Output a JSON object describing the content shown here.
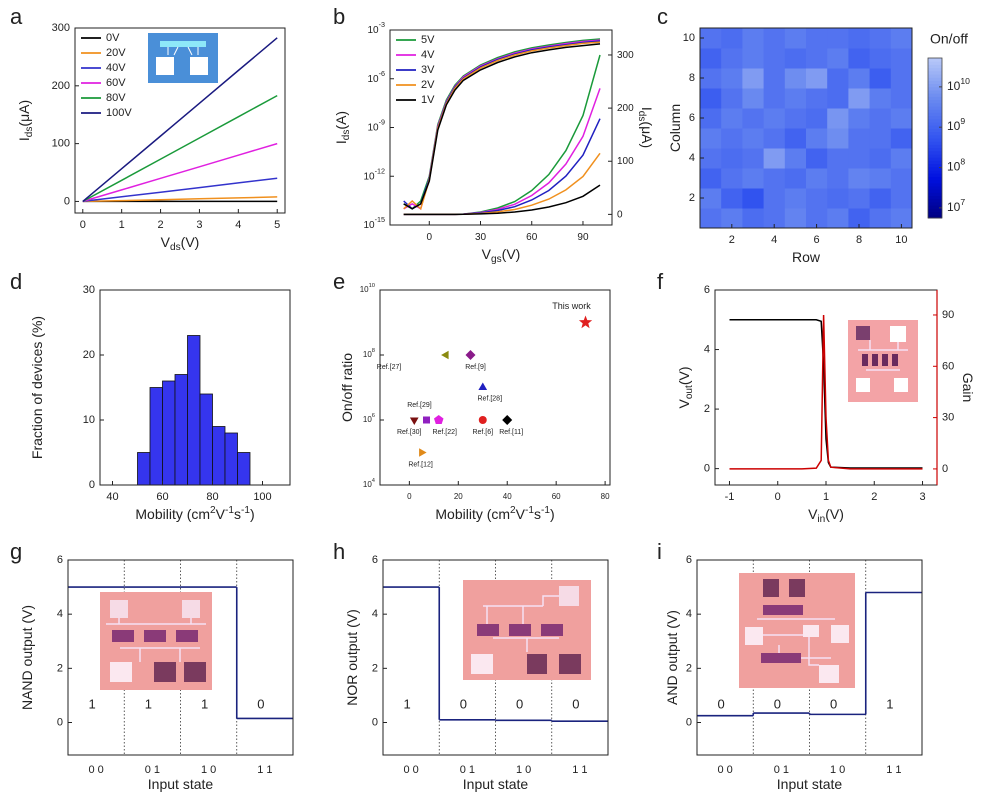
{
  "chart_data": [
    {
      "type": "line",
      "panel": "a",
      "xlabel": [
        {
          "text": "V"
        },
        {
          "text": "ds",
          "sub": true
        },
        {
          "text": "(V)"
        }
      ],
      "ylabel": [
        {
          "text": "I"
        },
        {
          "text": "ds",
          "sub": true
        },
        {
          "text": "(μA)"
        }
      ],
      "xlim": [
        -0.2,
        5.2
      ],
      "xticks": [
        0,
        1,
        2,
        3,
        4,
        5
      ],
      "ylim": [
        -20,
        300
      ],
      "yticks": [
        0,
        100,
        200,
        300
      ],
      "legend": "upper-left",
      "x": [
        0,
        1,
        2,
        3,
        4,
        5
      ],
      "series": [
        {
          "name": "0V",
          "color": "#000000",
          "values": [
            0,
            0,
            0,
            0,
            0,
            0
          ]
        },
        {
          "name": "20V",
          "color": "#f0901e",
          "values": [
            0,
            1.5,
            3,
            4.6,
            6.2,
            7.8
          ]
        },
        {
          "name": "40V",
          "color": "#3333cc",
          "values": [
            0,
            8,
            16,
            24,
            32,
            40
          ]
        },
        {
          "name": "60V",
          "color": "#e020e0",
          "values": [
            0,
            20,
            40,
            60,
            80,
            100
          ]
        },
        {
          "name": "80V",
          "color": "#1a9a3a",
          "values": [
            0,
            36.6,
            73.2,
            109.8,
            146.4,
            183
          ]
        },
        {
          "name": "100V",
          "color": "#1a1a80",
          "values": [
            0,
            56.6,
            113.2,
            169.8,
            226.4,
            283
          ]
        }
      ]
    },
    {
      "type": "dual-axis-line",
      "panel": "b",
      "xlabel": [
        {
          "text": "V"
        },
        {
          "text": "gs",
          "sub": true
        },
        {
          "text": "(V)"
        }
      ],
      "ylabel": [
        {
          "text": "I"
        },
        {
          "text": "ds",
          "sub": true
        },
        {
          "text": "(A)"
        }
      ],
      "y2label": [
        {
          "text": "I"
        },
        {
          "text": "ds",
          "sub": true
        },
        {
          "text": "(μA)"
        }
      ],
      "xlim": [
        -23,
        107
      ],
      "xticks": [
        0,
        30,
        60,
        90
      ],
      "ylog": true,
      "ylim": [
        1e-15,
        0.001
      ],
      "yticks": [
        {
          "value": 1e-15,
          "label": "10",
          "sup": "-15"
        },
        {
          "value": 1e-12,
          "label": "10",
          "sup": "-12"
        },
        {
          "value": 1e-09,
          "label": "10",
          "sup": "-9"
        },
        {
          "value": 1e-06,
          "label": "10",
          "sup": "-6"
        },
        {
          "value": 0.001,
          "label": "10",
          "sup": "-3"
        }
      ],
      "y2lim": [
        -20,
        347
      ],
      "y2ticks": [
        0,
        100,
        200,
        300
      ],
      "legend": "upper-left",
      "x": [
        -15,
        -10,
        -5,
        0,
        5,
        10,
        15,
        20,
        30,
        40,
        50,
        60,
        70,
        80,
        90,
        100
      ],
      "series": [
        {
          "name": "5V",
          "color": "#1a9a3a",
          "values": [
            2e-14,
            1e-14,
            3e-14,
            1e-12,
            1.5e-09,
            5e-08,
            4e-07,
            1.5e-06,
            7e-06,
            2e-05,
            4.5e-05,
            8e-05,
            0.00012,
            0.00017,
            0.00023,
            0.00028
          ]
        },
        {
          "name": "4V",
          "color": "#e020e0",
          "values": [
            1e-14,
            2e-14,
            1e-14,
            8e-13,
            1.2e-09,
            4e-08,
            3.4e-07,
            1.3e-06,
            6e-06,
            1.7e-05,
            3.8e-05,
            6.8e-05,
            0.0001,
            0.000145,
            0.000195,
            0.00024
          ]
        },
        {
          "name": "3V",
          "color": "#2020c0",
          "values": [
            3e-14,
            1e-14,
            2e-14,
            7e-13,
            1e-09,
            3.5e-08,
            3e-07,
            1.1e-06,
            5.2e-06,
            1.5e-05,
            3.3e-05,
            6e-05,
            9e-05,
            0.000125,
            0.00017,
            0.00021
          ]
        },
        {
          "name": "2V",
          "color": "#f0901e",
          "values": [
            1e-14,
            3e-14,
            1e-14,
            6e-13,
            9e-10,
            3e-08,
            2.6e-07,
            1e-06,
            4.5e-06,
            1.3e-05,
            2.9e-05,
            5.2e-05,
            7.8e-05,
            0.00011,
            0.00015,
            0.00018
          ]
        },
        {
          "name": "1V",
          "color": "#000000",
          "values": [
            2e-14,
            1e-14,
            2e-14,
            5e-13,
            7e-10,
            2.5e-08,
            2e-07,
            8e-07,
            3.5e-06,
            1e-05,
            2.2e-05,
            4e-05,
            6e-05,
            8.5e-05,
            0.00011,
            0.00014
          ]
        },
        {
          "axis": "y2",
          "color": "#1a9a3a",
          "values": [
            0,
            0,
            0,
            0,
            0,
            0,
            0,
            0.6,
            4.5,
            12,
            24,
            45,
            75,
            120,
            186,
            300
          ]
        },
        {
          "axis": "y2",
          "color": "#e020e0",
          "values": [
            0,
            0,
            0,
            0,
            0,
            0,
            0,
            0.5,
            3.6,
            9.5,
            19,
            35.6,
            59.3,
            94.8,
            147,
            237
          ]
        },
        {
          "axis": "y2",
          "color": "#2020c0",
          "values": [
            0,
            0,
            0,
            0,
            0,
            0,
            0,
            0.4,
            2.7,
            7.2,
            14.4,
            27,
            45,
            72,
            111.6,
            180
          ]
        },
        {
          "axis": "y2",
          "color": "#f0901e",
          "values": [
            0,
            0,
            0,
            0,
            0,
            0,
            0,
            0.2,
            1.7,
            4.6,
            9.2,
            17.3,
            28.8,
            46,
            71.3,
            115
          ]
        },
        {
          "axis": "y2",
          "color": "#000000",
          "values": [
            0,
            0,
            0,
            0,
            0,
            0,
            0,
            0.1,
            0.8,
            2.2,
            4.4,
            8.3,
            13.8,
            22,
            34.1,
            55
          ]
        }
      ]
    },
    {
      "type": "heatmap",
      "panel": "c",
      "xlabel": [
        {
          "text": "Row"
        }
      ],
      "ylabel": [
        {
          "text": "Column"
        }
      ],
      "zlabel": "On/off",
      "xlim": [
        0.5,
        10.5
      ],
      "xticks": [
        2,
        4,
        6,
        8,
        10
      ],
      "ylim": [
        0.5,
        10.5
      ],
      "yticks": [
        2,
        4,
        6,
        8,
        10
      ],
      "x": [
        1,
        2,
        3,
        4,
        5,
        6,
        7,
        8,
        9,
        10
      ],
      "y": [
        1,
        2,
        3,
        4,
        5,
        6,
        7,
        8,
        9,
        10
      ],
      "zlog": true,
      "zlim": [
        5600000.0,
        52000000000.0
      ],
      "zticks": [
        {
          "value": 10000000.0,
          "label": "10",
          "sup": "7"
        },
        {
          "value": 100000000.0,
          "label": "10",
          "sup": "8"
        },
        {
          "value": 1000000000.0,
          "label": "10",
          "sup": "9"
        },
        {
          "value": 10000000000.0,
          "label": "10",
          "sup": "10"
        }
      ],
      "colormap": [
        "#000080",
        "#0010e0",
        "#3355f0",
        "#6a8af0",
        "#b8c8f8"
      ],
      "values": [
        [
          2000000000.0,
          3000000000.0,
          1500000000.0,
          2000000000.0,
          4000000000.0,
          2000000000.0,
          3000000000.0,
          1000000000.0,
          2000000000.0,
          3000000000.0
        ],
        [
          3000000000.0,
          1000000000.0,
          500000000.0,
          2000000000.0,
          3000000000.0,
          2000000000.0,
          1500000000.0,
          2000000000.0,
          1000000000.0,
          2000000000.0
        ],
        [
          1000000000.0,
          2000000000.0,
          3000000000.0,
          2000000000.0,
          1500000000.0,
          3000000000.0,
          2000000000.0,
          4000000000.0,
          3000000000.0,
          2000000000.0
        ],
        [
          2000000000.0,
          1500000000.0,
          2000000000.0,
          10000000000.0,
          3000000000.0,
          1000000000.0,
          2000000000.0,
          2000000000.0,
          1500000000.0,
          3000000000.0
        ],
        [
          3000000000.0,
          2000000000.0,
          3000000000.0,
          2000000000.0,
          1000000000.0,
          3000000000.0,
          6000000000.0,
          2000000000.0,
          2000000000.0,
          1000000000.0
        ],
        [
          1500000000.0,
          3000000000.0,
          2000000000.0,
          3000000000.0,
          2000000000.0,
          1500000000.0,
          8000000000.0,
          3000000000.0,
          2000000000.0,
          3000000000.0
        ],
        [
          800000000.0,
          2000000000.0,
          5000000000.0,
          2000000000.0,
          3000000000.0,
          2000000000.0,
          1500000000.0,
          10000000000.0,
          3000000000.0,
          2000000000.0
        ],
        [
          2000000000.0,
          3000000000.0,
          10000000000.0,
          2000000000.0,
          6000000000.0,
          10000000000.0,
          1500000000.0,
          3000000000.0,
          800000000.0,
          2000000000.0
        ],
        [
          1000000000.0,
          2000000000.0,
          3000000000.0,
          2000000000.0,
          1500000000.0,
          2000000000.0,
          3000000000.0,
          1000000000.0,
          1500000000.0,
          2000000000.0
        ],
        [
          2000000000.0,
          1500000000.0,
          3000000000.0,
          2000000000.0,
          3000000000.0,
          2000000000.0,
          2000000000.0,
          1500000000.0,
          2000000000.0,
          3000000000.0
        ]
      ]
    },
    {
      "type": "histogram",
      "panel": "d",
      "xlabel": [
        {
          "text": "Mobility (cm"
        },
        {
          "text": "2",
          "sup": true
        },
        {
          "text": "V"
        },
        {
          "text": "-1",
          "sup": true
        },
        {
          "text": "s"
        },
        {
          "text": "-1",
          "sup": true
        },
        {
          "text": ")"
        }
      ],
      "ylabel": [
        {
          "text": "Fraction of devices (%)"
        }
      ],
      "xlim": [
        35,
        111
      ],
      "xticks": [
        40,
        60,
        80,
        100
      ],
      "ylim": [
        0,
        30
      ],
      "yticks": [
        0,
        10,
        20,
        30
      ],
      "color": "#3535ee",
      "bins": [
        50,
        55,
        60,
        65,
        70,
        75,
        80,
        85,
        90,
        95
      ],
      "counts": [
        5,
        15,
        16,
        17,
        23,
        14,
        9,
        8,
        5
      ]
    },
    {
      "type": "scatter",
      "panel": "e",
      "xlabel": [
        {
          "text": "Mobility (cm"
        },
        {
          "text": "2",
          "sup": true
        },
        {
          "text": "V"
        },
        {
          "text": "-1",
          "sup": true
        },
        {
          "text": "s"
        },
        {
          "text": "-1",
          "sup": true
        },
        {
          "text": ")"
        }
      ],
      "ylabel": [
        {
          "text": "On/off ratio"
        }
      ],
      "xlim": [
        -12,
        82
      ],
      "xticks": [
        0,
        20,
        40,
        60,
        80
      ],
      "ylog": true,
      "ylim": [
        10000.0,
        10000000000.0
      ],
      "yticks": [
        {
          "value": 10000.0,
          "label": "10",
          "sup": "4"
        },
        {
          "value": 1000000.0,
          "label": "10",
          "sup": "6"
        },
        {
          "value": 100000000.0,
          "label": "10",
          "sup": "8"
        },
        {
          "value": 10000000000.0,
          "label": "10",
          "sup": "10"
        }
      ],
      "labels": [
        "This work",
        "Ref.[27]",
        "Ref.[9]",
        "Ref.[28]",
        "Ref.[30]",
        "Ref.[29]",
        "Ref.[22]",
        "Ref.[6]",
        "Ref.[11]",
        "Ref.[12]"
      ],
      "x": [
        72,
        15,
        25,
        30,
        2,
        7,
        12,
        30,
        40,
        5
      ],
      "values": [
        1000000000.0,
        100000000.0,
        100000000.0,
        10000000.0,
        1000000.0,
        1000000.0,
        1000000.0,
        1000000.0,
        1000000.0,
        100000.0
      ],
      "markers": [
        "star",
        "triangle-left",
        "diamond",
        "triangle-up",
        "triangle-down",
        "square",
        "pentagon",
        "circle",
        "diamond",
        "triangle-right"
      ],
      "colors": [
        "#e02020",
        "#8a8a10",
        "#8a1a8a",
        "#2020c0",
        "#7a1010",
        "#9020c0",
        "#e020e0",
        "#e02020",
        "#000000",
        "#e08a1a"
      ]
    },
    {
      "type": "dual-axis-line",
      "panel": "f",
      "xlabel": [
        {
          "text": "V"
        },
        {
          "text": "in",
          "sub": true
        },
        {
          "text": "(V)"
        }
      ],
      "ylabel": [
        {
          "text": "V"
        },
        {
          "text": "out",
          "sub": true
        },
        {
          "text": "(V)"
        }
      ],
      "y2label": [
        {
          "text": "Gain"
        }
      ],
      "y2color": "#cc0000",
      "xlim": [
        -1.3,
        3.3
      ],
      "xticks": [
        -1,
        0,
        1,
        2,
        3
      ],
      "ylim": [
        -0.55,
        6
      ],
      "yticks": [
        0,
        2,
        4,
        6
      ],
      "y2lim": [
        -9.4,
        104.6
      ],
      "y2ticks": [
        0,
        30,
        60,
        90
      ],
      "x": [
        -1,
        -0.5,
        0,
        0.5,
        0.8,
        0.9,
        0.95,
        1.0,
        1.05,
        1.1,
        1.5,
        2,
        2.5,
        3
      ],
      "series": [
        {
          "color": "#000000",
          "values": [
            5,
            5,
            5,
            5,
            5,
            4.95,
            3.5,
            1.0,
            0.2,
            0.05,
            0.02,
            0.02,
            0.02,
            0.02
          ]
        },
        {
          "axis": "y2",
          "color": "#cc0000",
          "values": [
            0,
            0,
            0,
            0,
            0.5,
            5,
            90,
            30,
            5,
            1,
            0,
            0,
            0,
            0
          ]
        }
      ]
    },
    {
      "type": "step",
      "panel": "g",
      "xlabel": [
        {
          "text": "Input state"
        }
      ],
      "ylabel": [
        {
          "text": "NAND output (V)"
        }
      ],
      "ylim": [
        -1.2,
        6
      ],
      "yticks": [
        0,
        2,
        4,
        6
      ],
      "color": "#1a237e",
      "categories": [
        "0 0",
        "0 1",
        "1 0",
        "1 1"
      ],
      "values": [
        5,
        5,
        5,
        0.15
      ],
      "annotations": [
        "1",
        "1",
        "1",
        "0"
      ]
    },
    {
      "type": "step",
      "panel": "h",
      "xlabel": [
        {
          "text": "Input state"
        }
      ],
      "ylabel": [
        {
          "text": "NOR output (V)"
        }
      ],
      "ylim": [
        -1.2,
        6
      ],
      "yticks": [
        0,
        2,
        4,
        6
      ],
      "color": "#1a237e",
      "categories": [
        "0 0",
        "0 1",
        "1 0",
        "1 1"
      ],
      "values": [
        5,
        0.1,
        0.08,
        0.05
      ],
      "annotations": [
        "1",
        "0",
        "0",
        "0"
      ]
    },
    {
      "type": "step",
      "panel": "i",
      "xlabel": [
        {
          "text": "Input state"
        }
      ],
      "ylabel": [
        {
          "text": "AND output (V)"
        }
      ],
      "ylim": [
        -1.2,
        6
      ],
      "yticks": [
        0,
        2,
        4,
        6
      ],
      "color": "#1a237e",
      "categories": [
        "0 0",
        "0 1",
        "1 0",
        "1 1"
      ],
      "values": [
        0.25,
        0.35,
        0.3,
        4.8
      ],
      "annotations": [
        "0",
        "0",
        "0",
        "1"
      ]
    }
  ]
}
